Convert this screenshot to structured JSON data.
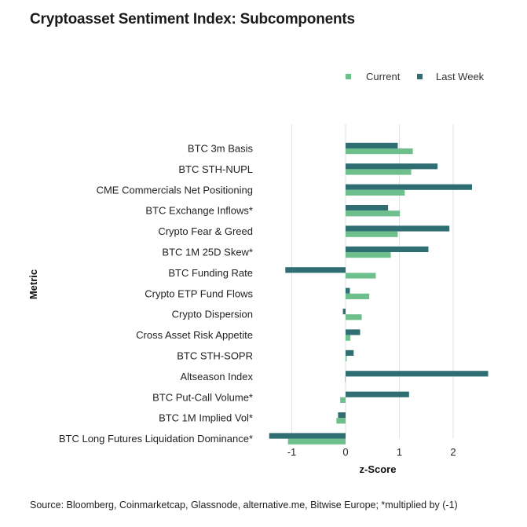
{
  "title": "Cryptoasset Sentiment Index: Subcomponents",
  "source": "Source: Bloomberg, Coinmarketcap, Glassnode, alternative.me, Bitwise Europe; *multiplied by (-1)",
  "chart_data": {
    "type": "bar",
    "orientation": "horizontal",
    "title": "Cryptoasset Sentiment Index: Subcomponents",
    "xlabel": "z-Score",
    "ylabel": "Metric",
    "xlim": [
      -1.45,
      2.65
    ],
    "xticks": [
      -1,
      0,
      1,
      2
    ],
    "xtick_labels": [
      "-1",
      "0",
      "1",
      "2"
    ],
    "grid": "vertical",
    "legend_position": "top-right",
    "categories": [
      "BTC 3m Basis",
      "BTC STH-NUPL",
      "CME Commercials Net Positioning",
      "BTC Exchange Inflows*",
      "Crypto Fear & Greed",
      "BTC 1M 25D Skew*",
      "BTC Funding Rate",
      "Crypto ETP Fund Flows",
      "Crypto Dispersion",
      "Cross Asset Risk Appetite",
      "BTC STH-SOPR",
      "Altseason Index",
      "BTC Put-Call Volume*",
      "BTC 1M Implied Vol*",
      "BTC Long Futures Liquidation Dominance*"
    ],
    "series": [
      {
        "name": "Current",
        "color": "#6dbf8b",
        "values": [
          1.25,
          1.22,
          1.1,
          1.01,
          0.97,
          0.84,
          0.56,
          0.44,
          0.3,
          0.09,
          0.02,
          -0.01,
          -0.1,
          -0.17,
          -1.07
        ]
      },
      {
        "name": "Last Week",
        "color": "#2f6f73",
        "values": [
          0.97,
          1.71,
          2.35,
          0.79,
          1.93,
          1.54,
          -1.12,
          0.08,
          -0.05,
          0.27,
          0.15,
          2.65,
          1.18,
          -0.14,
          -1.42
        ]
      }
    ]
  }
}
